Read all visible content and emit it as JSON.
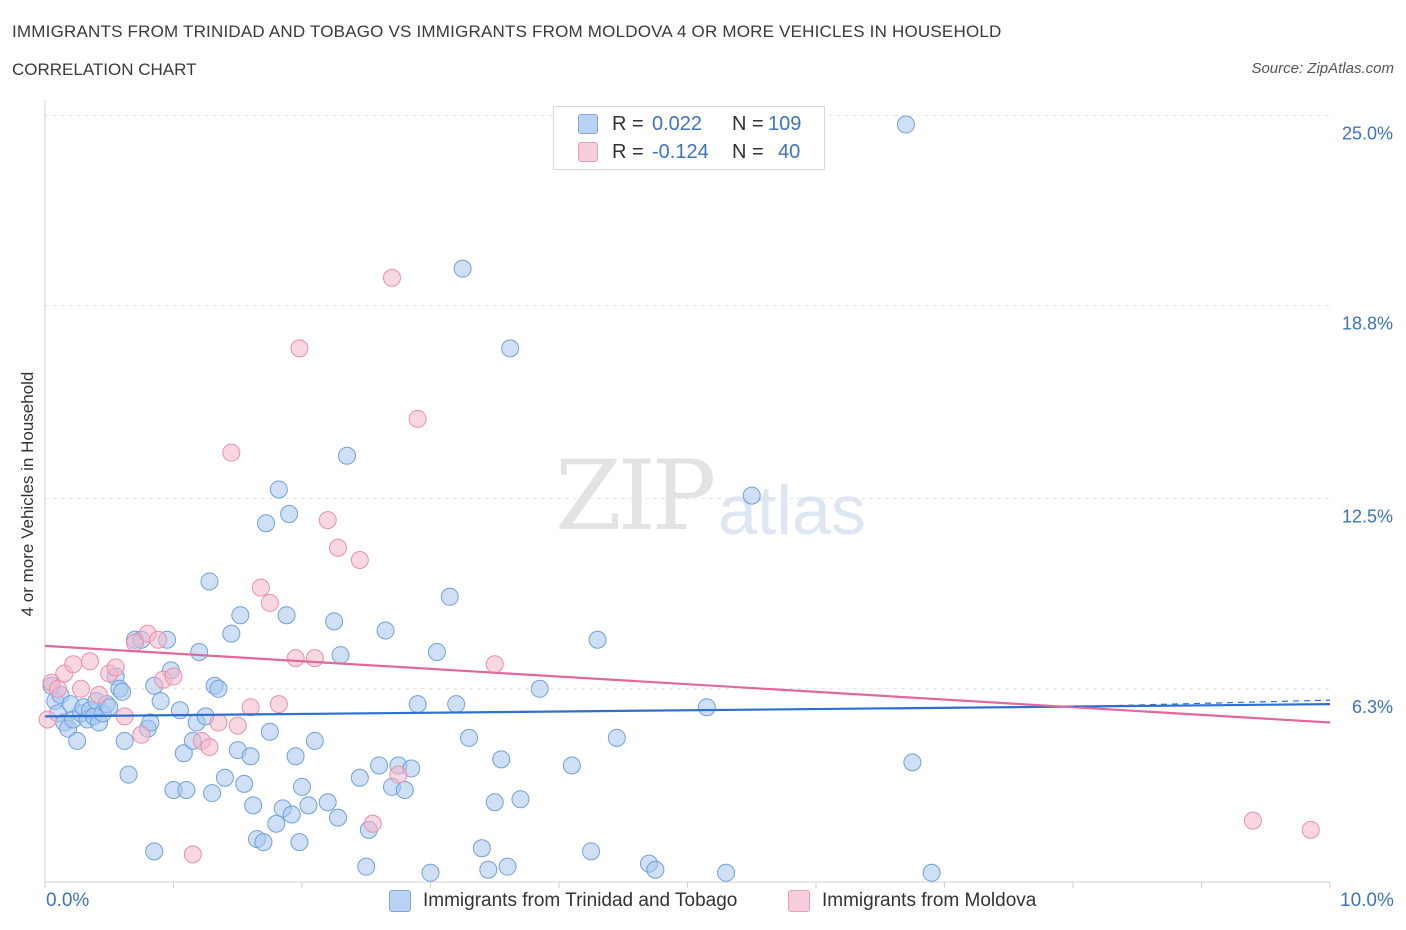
{
  "header": {
    "title": "IMMIGRANTS FROM TRINIDAD AND TOBAGO VS IMMIGRANTS FROM MOLDOVA 4 OR MORE VEHICLES IN HOUSEHOLD",
    "subtitle": "CORRELATION CHART",
    "source": "Source: ZipAtlas.com"
  },
  "watermark": {
    "zip": "ZIP",
    "atlas": "atlas"
  },
  "legend_top": {
    "rows": [
      {
        "r_label": "R =",
        "r_value": "0.022",
        "n_label": "N =",
        "n_value": "109",
        "color": "#a8c6ef"
      },
      {
        "r_label": "R =",
        "r_value": "-0.124",
        "n_label": "N =",
        "n_value": "40",
        "color": "#f4b6c9"
      }
    ]
  },
  "legend_bottom": {
    "items": [
      {
        "label": "Immigrants from Trinidad and Tobago",
        "color": "#a8c6ef"
      },
      {
        "label": "Immigrants from Moldova",
        "color": "#f4b6c9"
      }
    ]
  },
  "chart_data": {
    "type": "scatter",
    "title": "IMMIGRANTS FROM TRINIDAD AND TOBAGO VS IMMIGRANTS FROM MOLDOVA 4 OR MORE VEHICLES IN HOUSEHOLD",
    "ylabel": "4 or more Vehicles in Household",
    "xlim": [
      0,
      10
    ],
    "ylim": [
      0,
      25.5
    ],
    "x_tick_labels": [
      "0.0%",
      "10.0%"
    ],
    "y_ticks": [
      6.3,
      12.5,
      18.8,
      25.0
    ],
    "y_tick_labels": [
      "6.3%",
      "12.5%",
      "18.8%",
      "25.0%"
    ],
    "grid": true,
    "series": [
      {
        "name": "Immigrants from Trinidad and Tobago",
        "color": "#6fa0e0",
        "fill": "#a8c6ef",
        "trend": {
          "x": [
            0,
            10
          ],
          "y": [
            5.4,
            5.8
          ]
        },
        "points": [
          [
            0.05,
            6.4
          ],
          [
            0.08,
            5.9
          ],
          [
            0.1,
            5.5
          ],
          [
            0.12,
            6.1
          ],
          [
            0.15,
            5.2
          ],
          [
            0.18,
            5.0
          ],
          [
            0.2,
            5.8
          ],
          [
            0.22,
            5.3
          ],
          [
            0.25,
            4.6
          ],
          [
            0.28,
            5.5
          ],
          [
            0.3,
            5.7
          ],
          [
            0.33,
            5.3
          ],
          [
            0.35,
            5.6
          ],
          [
            0.38,
            5.4
          ],
          [
            0.4,
            5.9
          ],
          [
            0.42,
            5.2
          ],
          [
            0.45,
            5.5
          ],
          [
            0.48,
            5.8
          ],
          [
            0.5,
            5.7
          ],
          [
            0.55,
            6.7
          ],
          [
            0.58,
            6.3
          ],
          [
            0.6,
            6.2
          ],
          [
            0.62,
            4.6
          ],
          [
            0.65,
            3.5
          ],
          [
            0.7,
            7.9
          ],
          [
            0.75,
            7.9
          ],
          [
            0.8,
            5.0
          ],
          [
            0.82,
            5.2
          ],
          [
            0.85,
            1.0
          ],
          [
            0.85,
            6.4
          ],
          [
            0.9,
            5.9
          ],
          [
            0.95,
            7.9
          ],
          [
            0.98,
            6.9
          ],
          [
            1.0,
            3.0
          ],
          [
            1.05,
            5.6
          ],
          [
            1.08,
            4.2
          ],
          [
            1.1,
            3.0
          ],
          [
            1.15,
            4.6
          ],
          [
            1.18,
            5.2
          ],
          [
            1.2,
            7.5
          ],
          [
            1.25,
            5.4
          ],
          [
            1.28,
            9.8
          ],
          [
            1.3,
            2.9
          ],
          [
            1.32,
            6.4
          ],
          [
            1.35,
            6.3
          ],
          [
            1.4,
            3.4
          ],
          [
            1.45,
            8.1
          ],
          [
            1.5,
            4.3
          ],
          [
            1.52,
            8.7
          ],
          [
            1.55,
            3.2
          ],
          [
            1.6,
            4.1
          ],
          [
            1.62,
            2.5
          ],
          [
            1.65,
            1.4
          ],
          [
            1.7,
            1.3
          ],
          [
            1.72,
            11.7
          ],
          [
            1.75,
            4.9
          ],
          [
            1.8,
            1.9
          ],
          [
            1.82,
            12.8
          ],
          [
            1.85,
            2.4
          ],
          [
            1.88,
            8.7
          ],
          [
            1.9,
            12.0
          ],
          [
            1.92,
            2.2
          ],
          [
            1.95,
            4.1
          ],
          [
            1.98,
            1.3
          ],
          [
            2.0,
            3.1
          ],
          [
            2.05,
            2.5
          ],
          [
            2.1,
            4.6
          ],
          [
            2.2,
            2.6
          ],
          [
            2.25,
            8.5
          ],
          [
            2.28,
            2.1
          ],
          [
            2.3,
            7.4
          ],
          [
            2.35,
            13.9
          ],
          [
            2.45,
            3.4
          ],
          [
            2.5,
            0.5
          ],
          [
            2.52,
            1.7
          ],
          [
            2.6,
            3.8
          ],
          [
            2.65,
            8.2
          ],
          [
            2.7,
            3.1
          ],
          [
            2.75,
            3.8
          ],
          [
            2.8,
            3.0
          ],
          [
            2.85,
            3.7
          ],
          [
            2.9,
            5.8
          ],
          [
            3.0,
            0.3
          ],
          [
            3.05,
            7.5
          ],
          [
            3.15,
            9.3
          ],
          [
            3.2,
            5.8
          ],
          [
            3.25,
            20.0
          ],
          [
            3.3,
            4.7
          ],
          [
            3.4,
            1.1
          ],
          [
            3.45,
            0.4
          ],
          [
            3.5,
            2.6
          ],
          [
            3.55,
            4.0
          ],
          [
            3.6,
            0.5
          ],
          [
            3.62,
            17.4
          ],
          [
            3.7,
            2.7
          ],
          [
            3.85,
            6.3
          ],
          [
            4.1,
            3.8
          ],
          [
            4.25,
            1.0
          ],
          [
            4.3,
            7.9
          ],
          [
            4.45,
            4.7
          ],
          [
            4.7,
            0.6
          ],
          [
            4.75,
            0.4
          ],
          [
            5.15,
            5.7
          ],
          [
            5.3,
            0.3
          ],
          [
            5.5,
            12.6
          ],
          [
            6.7,
            24.7
          ],
          [
            6.75,
            3.9
          ],
          [
            6.9,
            0.3
          ]
        ]
      },
      {
        "name": "Immigrants from Moldova",
        "color": "#ea8fab",
        "fill": "#f4b6c9",
        "trend": {
          "x": [
            0,
            10
          ],
          "y": [
            7.7,
            5.2
          ]
        },
        "points": [
          [
            0.02,
            5.3
          ],
          [
            0.05,
            6.5
          ],
          [
            0.1,
            6.3
          ],
          [
            0.15,
            6.8
          ],
          [
            0.22,
            7.1
          ],
          [
            0.28,
            6.3
          ],
          [
            0.35,
            7.2
          ],
          [
            0.42,
            6.1
          ],
          [
            0.5,
            6.8
          ],
          [
            0.55,
            7.0
          ],
          [
            0.62,
            5.4
          ],
          [
            0.7,
            7.8
          ],
          [
            0.75,
            4.8
          ],
          [
            0.8,
            8.1
          ],
          [
            0.88,
            7.9
          ],
          [
            0.92,
            6.6
          ],
          [
            1.0,
            6.7
          ],
          [
            1.15,
            0.9
          ],
          [
            1.22,
            4.6
          ],
          [
            1.28,
            4.4
          ],
          [
            1.35,
            5.2
          ],
          [
            1.45,
            14.0
          ],
          [
            1.5,
            5.1
          ],
          [
            1.6,
            5.7
          ],
          [
            1.68,
            9.6
          ],
          [
            1.75,
            9.1
          ],
          [
            1.82,
            5.8
          ],
          [
            1.95,
            7.3
          ],
          [
            1.98,
            17.4
          ],
          [
            2.1,
            7.3
          ],
          [
            2.2,
            11.8
          ],
          [
            2.28,
            10.9
          ],
          [
            2.45,
            10.5
          ],
          [
            2.55,
            1.9
          ],
          [
            2.75,
            3.5
          ],
          [
            2.7,
            19.7
          ],
          [
            2.9,
            15.1
          ],
          [
            3.5,
            7.1
          ],
          [
            9.4,
            2.0
          ],
          [
            9.85,
            1.7
          ]
        ]
      }
    ]
  }
}
